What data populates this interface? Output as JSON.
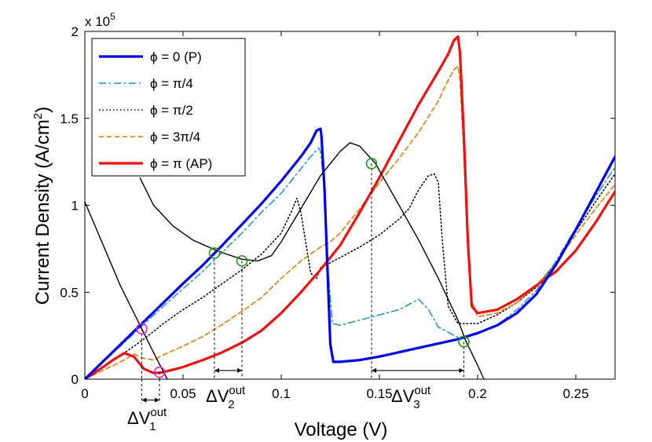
{
  "chart_data": {
    "type": "line",
    "xlabel": "Voltage (V)",
    "ylabel_main": "Current Density (A/cm",
    "ylabel_sup": "2",
    "ylabel_close": ")",
    "exponent_label": "x 10",
    "exponent_power": "5",
    "xlim": [
      0,
      0.27
    ],
    "ylim": [
      0,
      200000
    ],
    "x_ticks": [
      {
        "value": 0,
        "label": "0"
      },
      {
        "value": 0.05,
        "label": "0.05"
      },
      {
        "value": 0.1,
        "label": "0.1"
      },
      {
        "value": 0.15,
        "label": "0.15"
      },
      {
        "value": 0.2,
        "label": "0.2"
      },
      {
        "value": 0.25,
        "label": "0.25"
      }
    ],
    "y_ticks": [
      {
        "value": 0,
        "label": "0"
      },
      {
        "value": 50000,
        "label": "0.5"
      },
      {
        "value": 100000,
        "label": "1"
      },
      {
        "value": 150000,
        "label": "1.5"
      },
      {
        "value": 200000,
        "label": "2"
      }
    ],
    "legend_position": "top-left",
    "series": [
      {
        "name": "ϕ = 0 (P)",
        "color": "#0000ee",
        "style": "solid",
        "width": 3.2,
        "points": [
          [
            0,
            0
          ],
          [
            0.01,
            11000
          ],
          [
            0.02,
            22000
          ],
          [
            0.03,
            33000
          ],
          [
            0.04,
            44000
          ],
          [
            0.05,
            55000
          ],
          [
            0.06,
            65500
          ],
          [
            0.07,
            77000
          ],
          [
            0.08,
            89000
          ],
          [
            0.09,
            101000
          ],
          [
            0.1,
            114000
          ],
          [
            0.11,
            128000
          ],
          [
            0.115,
            136000
          ],
          [
            0.118,
            143000
          ],
          [
            0.12,
            144000
          ],
          [
            0.1205,
            140000
          ],
          [
            0.122,
            110000
          ],
          [
            0.124,
            50000
          ],
          [
            0.125,
            20000
          ],
          [
            0.1265,
            10000
          ],
          [
            0.13,
            10000
          ],
          [
            0.14,
            11000
          ],
          [
            0.15,
            13000
          ],
          [
            0.16,
            15500
          ],
          [
            0.17,
            18000
          ],
          [
            0.18,
            20500
          ],
          [
            0.19,
            23000
          ],
          [
            0.2,
            26500
          ],
          [
            0.21,
            31000
          ],
          [
            0.22,
            38000
          ],
          [
            0.23,
            49000
          ],
          [
            0.24,
            66000
          ],
          [
            0.25,
            86000
          ],
          [
            0.26,
            107000
          ],
          [
            0.27,
            128000
          ]
        ]
      },
      {
        "name": "ϕ = π/4",
        "color": "#1a8fcf",
        "style": "dashdot",
        "width": 1.5,
        "points": [
          [
            0,
            0
          ],
          [
            0.01,
            10500
          ],
          [
            0.02,
            21000
          ],
          [
            0.03,
            31500
          ],
          [
            0.04,
            42000
          ],
          [
            0.05,
            52000
          ],
          [
            0.06,
            62000
          ],
          [
            0.07,
            73000
          ],
          [
            0.08,
            84000
          ],
          [
            0.09,
            96000
          ],
          [
            0.1,
            107000
          ],
          [
            0.11,
            121000
          ],
          [
            0.115,
            128000
          ],
          [
            0.119,
            133000
          ],
          [
            0.12,
            131000
          ],
          [
            0.122,
            110000
          ],
          [
            0.124,
            60000
          ],
          [
            0.126,
            32000
          ],
          [
            0.13,
            31000
          ],
          [
            0.14,
            34000
          ],
          [
            0.15,
            37000
          ],
          [
            0.16,
            40000
          ],
          [
            0.165,
            43000
          ],
          [
            0.17,
            46000
          ],
          [
            0.175,
            40000
          ],
          [
            0.18,
            30000
          ],
          [
            0.19,
            24000
          ],
          [
            0.2,
            26000
          ],
          [
            0.21,
            31000
          ],
          [
            0.22,
            40000
          ],
          [
            0.23,
            51000
          ],
          [
            0.24,
            68000
          ],
          [
            0.25,
            87000
          ],
          [
            0.26,
            105000
          ],
          [
            0.27,
            122000
          ]
        ]
      },
      {
        "name": "ϕ = π/2",
        "color": "#000000",
        "style": "dotted",
        "width": 1.5,
        "points": [
          [
            0,
            0
          ],
          [
            0.01,
            8000
          ],
          [
            0.02,
            15000
          ],
          [
            0.03,
            23000
          ],
          [
            0.04,
            32000
          ],
          [
            0.05,
            40000
          ],
          [
            0.06,
            47000
          ],
          [
            0.07,
            55000
          ],
          [
            0.08,
            63000
          ],
          [
            0.09,
            72000
          ],
          [
            0.1,
            84000
          ],
          [
            0.105,
            96000
          ],
          [
            0.108,
            104000
          ],
          [
            0.11,
            96000
          ],
          [
            0.113,
            75000
          ],
          [
            0.115,
            61000
          ],
          [
            0.118,
            58000
          ],
          [
            0.12,
            64000
          ],
          [
            0.125,
            67000
          ],
          [
            0.13,
            70000
          ],
          [
            0.14,
            76000
          ],
          [
            0.15,
            83000
          ],
          [
            0.16,
            92000
          ],
          [
            0.165,
            98000
          ],
          [
            0.17,
            109000
          ],
          [
            0.175,
            117000
          ],
          [
            0.178,
            118000
          ],
          [
            0.18,
            113000
          ],
          [
            0.182,
            80000
          ],
          [
            0.185,
            42000
          ],
          [
            0.19,
            32000
          ],
          [
            0.2,
            32000
          ],
          [
            0.21,
            37000
          ],
          [
            0.22,
            44000
          ],
          [
            0.23,
            53000
          ],
          [
            0.24,
            67000
          ],
          [
            0.25,
            85000
          ],
          [
            0.26,
            102000
          ],
          [
            0.27,
            118000
          ]
        ]
      },
      {
        "name": "ϕ = 3π/4",
        "color": "#e08a1e",
        "style": "dashed",
        "width": 1.8,
        "points": [
          [
            0,
            0
          ],
          [
            0.01,
            5500
          ],
          [
            0.02,
            11000
          ],
          [
            0.025,
            14500
          ],
          [
            0.03,
            12000
          ],
          [
            0.035,
            11000
          ],
          [
            0.04,
            14000
          ],
          [
            0.05,
            19000
          ],
          [
            0.06,
            24500
          ],
          [
            0.07,
            31500
          ],
          [
            0.08,
            39000
          ],
          [
            0.09,
            47000
          ],
          [
            0.1,
            58000
          ],
          [
            0.11,
            68000
          ],
          [
            0.115,
            72000
          ],
          [
            0.12,
            76000
          ],
          [
            0.125,
            79000
          ],
          [
            0.13,
            84000
          ],
          [
            0.14,
            98000
          ],
          [
            0.15,
            113000
          ],
          [
            0.16,
            127000
          ],
          [
            0.17,
            142000
          ],
          [
            0.18,
            160000
          ],
          [
            0.185,
            172000
          ],
          [
            0.188,
            178000
          ],
          [
            0.19,
            180000
          ],
          [
            0.191,
            172000
          ],
          [
            0.193,
            130000
          ],
          [
            0.195,
            80000
          ],
          [
            0.197,
            45000
          ],
          [
            0.2,
            36000
          ],
          [
            0.21,
            38000
          ],
          [
            0.22,
            44000
          ],
          [
            0.23,
            54000
          ],
          [
            0.24,
            67000
          ],
          [
            0.25,
            83000
          ],
          [
            0.26,
            98000
          ],
          [
            0.27,
            112000
          ]
        ]
      },
      {
        "name": "ϕ = π (AP)",
        "color": "#ee1111",
        "style": "solid",
        "width": 3.2,
        "points": [
          [
            0,
            0
          ],
          [
            0.008,
            6000
          ],
          [
            0.015,
            11500
          ],
          [
            0.02,
            15000
          ],
          [
            0.025,
            13000
          ],
          [
            0.03,
            6000
          ],
          [
            0.035,
            3500
          ],
          [
            0.04,
            4000
          ],
          [
            0.05,
            7000
          ],
          [
            0.06,
            11000
          ],
          [
            0.07,
            15500
          ],
          [
            0.08,
            21000
          ],
          [
            0.09,
            28000
          ],
          [
            0.1,
            38000
          ],
          [
            0.11,
            50000
          ],
          [
            0.12,
            63000
          ],
          [
            0.13,
            77000
          ],
          [
            0.14,
            96000
          ],
          [
            0.15,
            116000
          ],
          [
            0.16,
            137000
          ],
          [
            0.17,
            158000
          ],
          [
            0.18,
            177000
          ],
          [
            0.185,
            187000
          ],
          [
            0.188,
            195000
          ],
          [
            0.19,
            197000
          ],
          [
            0.191,
            188000
          ],
          [
            0.193,
            140000
          ],
          [
            0.195,
            80000
          ],
          [
            0.197,
            42000
          ],
          [
            0.2,
            38000
          ],
          [
            0.21,
            40000
          ],
          [
            0.22,
            46000
          ],
          [
            0.23,
            54000
          ],
          [
            0.24,
            62000
          ],
          [
            0.25,
            74000
          ],
          [
            0.26,
            90000
          ],
          [
            0.27,
            108000
          ]
        ]
      }
    ],
    "load_lines": [
      {
        "name": "load line 1",
        "color": "#000000",
        "width": 1.4,
        "points": [
          [
            0,
            102000
          ],
          [
            0.009,
            78000
          ],
          [
            0.018,
            54000
          ],
          [
            0.029,
            29000
          ],
          [
            0.036,
            13000
          ],
          [
            0.042,
            0
          ]
        ]
      },
      {
        "name": "load line 2",
        "color": "#000000",
        "width": 1.4,
        "points": [
          [
            0.028,
            116000
          ],
          [
            0.035,
            100000
          ],
          [
            0.045,
            88000
          ],
          [
            0.055,
            80000
          ],
          [
            0.065,
            75000
          ],
          [
            0.072,
            72000
          ],
          [
            0.08,
            69000
          ],
          [
            0.088,
            68000
          ],
          [
            0.095,
            71000
          ],
          [
            0.1,
            79000
          ],
          [
            0.11,
            98000
          ],
          [
            0.12,
            117000
          ],
          [
            0.13,
            131000
          ],
          [
            0.135,
            136000
          ],
          [
            0.14,
            134000
          ],
          [
            0.148,
            124000
          ],
          [
            0.16,
            100000
          ],
          [
            0.17,
            80000
          ],
          [
            0.18,
            58000
          ],
          [
            0.19,
            34000
          ],
          [
            0.194,
            22000
          ],
          [
            0.2,
            8000
          ],
          [
            0.204,
            -2000
          ]
        ]
      }
    ],
    "markers": [
      {
        "x": 0.029,
        "y": 29000,
        "color": "#dd22dd"
      },
      {
        "x": 0.038,
        "y": 4000,
        "color": "#dd22dd"
      },
      {
        "x": 0.066,
        "y": 72500,
        "color": "#1a9a1a"
      },
      {
        "x": 0.08,
        "y": 68000,
        "color": "#1a9a1a"
      },
      {
        "x": 0.146,
        "y": 124000,
        "color": "#1a9a1a"
      },
      {
        "x": 0.193,
        "y": 21500,
        "color": "#1a9a1a"
      }
    ],
    "delta_annotations": [
      {
        "base": "ΔV",
        "sub": "1",
        "sup": "out",
        "x1": 0.029,
        "x2": 0.038,
        "y1top": 29000,
        "y2top": 4000,
        "arrow_y": -12000
      },
      {
        "base": "ΔV",
        "sub": "2",
        "sup": "out",
        "x1": 0.066,
        "x2": 0.08,
        "y1top": 72500,
        "y2top": 68000,
        "arrow_y": 5000
      },
      {
        "base": "ΔV",
        "sub": "3",
        "sup": "out",
        "x1": 0.146,
        "x2": 0.193,
        "y1top": 124000,
        "y2top": 21500,
        "arrow_y": 5000
      }
    ]
  }
}
